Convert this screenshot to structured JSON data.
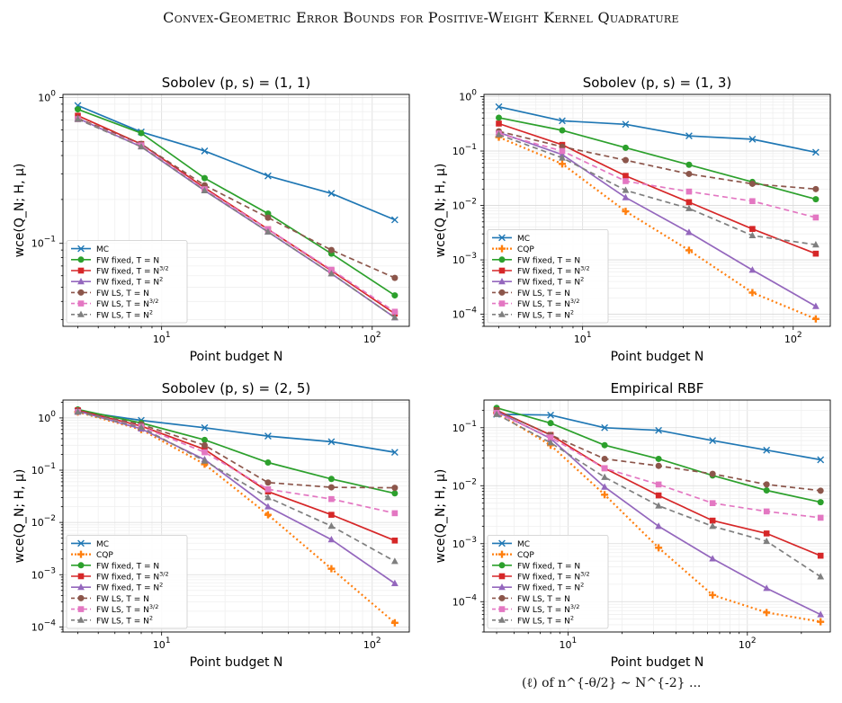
{
  "header": {
    "running_title": "Convex-Geometric Error Bounds for Positive-Weight Kernel Quadrature"
  },
  "caption_fragment": "(ℓ) of n^{-θ/2} ∼ N^{-2} ...",
  "legend": [
    {
      "key": "mc",
      "label": "MC",
      "color": "#1f77b4",
      "marker": "x",
      "dash": ""
    },
    {
      "key": "cqp",
      "label": "CQP",
      "color": "#ff7f0e",
      "marker": "plus",
      "dash": "2,3"
    },
    {
      "key": "fw_n",
      "label": "FW fixed, T = N",
      "color": "#2ca02c",
      "marker": "circle",
      "dash": ""
    },
    {
      "key": "fw_n32",
      "label": "FW fixed, T = N^3/2",
      "color": "#d62728",
      "marker": "square",
      "dash": ""
    },
    {
      "key": "fw_n2",
      "label": "FW fixed, T = N^2",
      "color": "#9467bd",
      "marker": "triangle",
      "dash": ""
    },
    {
      "key": "ls_n",
      "label": "FW LS, T = N",
      "color": "#8c564b",
      "marker": "circle",
      "dash": "6,4"
    },
    {
      "key": "ls_n32",
      "label": "FW LS, T = N^3/2",
      "color": "#e377c2",
      "marker": "square",
      "dash": "6,4"
    },
    {
      "key": "ls_n2",
      "label": "FW LS, T = N^2",
      "color": "#7f7f7f",
      "marker": "triangle",
      "dash": "6,4"
    }
  ],
  "chart_data": [
    {
      "type": "line",
      "title": "Sobolev (p, s) = (1, 1)",
      "xlabel": "Point budget N",
      "ylabel": "wce(Q_N; H, μ)",
      "xscale": "log",
      "yscale": "log",
      "xlim": [
        3.4,
        150
      ],
      "ylim": [
        0.027,
        1.05
      ],
      "yticks": [
        0.1,
        1
      ],
      "ytick_labels": [
        "10^-1",
        "10^0"
      ],
      "xticks": [
        10,
        100
      ],
      "xtick_labels": [
        "10^1",
        "10^2"
      ],
      "grid": true,
      "legend_position": "lower-left",
      "x": [
        4,
        8,
        16,
        32,
        64,
        128
      ],
      "series": [
        {
          "name": "MC",
          "values": [
            0.88,
            0.58,
            0.43,
            0.29,
            0.22,
            0.145
          ]
        },
        {
          "name": "FW fixed, T = N",
          "values": [
            0.83,
            0.57,
            0.28,
            0.16,
            0.085,
            0.044
          ]
        },
        {
          "name": "FW fixed, T = N^3/2",
          "values": [
            0.75,
            0.48,
            0.24,
            0.125,
            0.065,
            0.033
          ]
        },
        {
          "name": "FW fixed, T = N^2",
          "values": [
            0.72,
            0.46,
            0.23,
            0.12,
            0.062,
            0.031
          ]
        },
        {
          "name": "FW LS, T = N",
          "values": [
            0.72,
            0.48,
            0.25,
            0.15,
            0.09,
            0.058
          ]
        },
        {
          "name": "FW LS, T = N^3/2",
          "values": [
            0.71,
            0.47,
            0.235,
            0.125,
            0.066,
            0.034
          ]
        },
        {
          "name": "FW LS, T = N^2",
          "values": [
            0.71,
            0.46,
            0.23,
            0.12,
            0.062,
            0.031
          ]
        }
      ]
    },
    {
      "type": "line",
      "title": "Sobolev (p, s) = (1, 3)",
      "xlabel": "Point budget N",
      "ylabel": "wce(Q_N; H, μ)",
      "xscale": "log",
      "yscale": "log",
      "xlim": [
        3.4,
        150
      ],
      "ylim": [
        6e-05,
        1.1
      ],
      "yticks": [
        0.0001,
        0.001,
        0.01,
        0.1,
        1
      ],
      "ytick_labels": [
        "10^-4",
        "10^-3",
        "10^-2",
        "10^-1",
        "10^0"
      ],
      "xticks": [
        10,
        100
      ],
      "xtick_labels": [
        "10^1",
        "10^2"
      ],
      "grid": true,
      "legend_position": "lower-left",
      "x": [
        4,
        8,
        16,
        32,
        64,
        128
      ],
      "series": [
        {
          "name": "MC",
          "values": [
            0.65,
            0.36,
            0.31,
            0.19,
            0.165,
            0.095
          ]
        },
        {
          "name": "CQP",
          "values": [
            0.18,
            0.058,
            0.0078,
            0.0015,
            0.00025,
            8.2e-05
          ]
        },
        {
          "name": "FW fixed, T = N",
          "values": [
            0.41,
            0.24,
            0.115,
            0.056,
            0.027,
            0.013
          ]
        },
        {
          "name": "FW fixed, T = N^3/2",
          "values": [
            0.32,
            0.13,
            0.035,
            0.0115,
            0.0037,
            0.0013
          ]
        },
        {
          "name": "FW fixed, T = N^2",
          "values": [
            0.22,
            0.086,
            0.014,
            0.0032,
            0.00065,
            0.00014
          ]
        },
        {
          "name": "FW LS, T = N",
          "values": [
            0.23,
            0.12,
            0.068,
            0.038,
            0.025,
            0.02
          ]
        },
        {
          "name": "FW LS, T = N^3/2",
          "values": [
            0.21,
            0.1,
            0.028,
            0.018,
            0.012,
            0.006
          ]
        },
        {
          "name": "FW LS, T = N^2",
          "values": [
            0.2,
            0.075,
            0.019,
            0.0088,
            0.0028,
            0.0019
          ]
        }
      ]
    },
    {
      "type": "line",
      "title": "Sobolev (p, s) = (2, 5)",
      "xlabel": "Point budget N",
      "ylabel": "wce(Q_N; H, μ)",
      "xscale": "log",
      "yscale": "log",
      "xlim": [
        3.4,
        150
      ],
      "ylim": [
        8e-05,
        2.2
      ],
      "yticks": [
        0.0001,
        0.001,
        0.01,
        0.1,
        1
      ],
      "ytick_labels": [
        "10^-4",
        "10^-3",
        "10^-2",
        "10^-1",
        "10^0"
      ],
      "xticks": [
        10,
        100
      ],
      "xtick_labels": [
        "10^1",
        "10^2"
      ],
      "grid": true,
      "legend_position": "lower-left",
      "x": [
        4,
        8,
        16,
        32,
        64,
        128
      ],
      "series": [
        {
          "name": "MC",
          "values": [
            1.35,
            0.9,
            0.65,
            0.45,
            0.35,
            0.22
          ]
        },
        {
          "name": "CQP",
          "values": [
            1.3,
            0.6,
            0.13,
            0.014,
            0.0013,
            0.00012
          ]
        },
        {
          "name": "FW fixed, T = N",
          "values": [
            1.45,
            0.8,
            0.38,
            0.14,
            0.068,
            0.036
          ]
        },
        {
          "name": "FW fixed, T = N^3/2",
          "values": [
            1.4,
            0.7,
            0.25,
            0.039,
            0.014,
            0.0045
          ]
        },
        {
          "name": "FW fixed, T = N^2",
          "values": [
            1.35,
            0.62,
            0.16,
            0.02,
            0.0047,
            0.00068
          ]
        },
        {
          "name": "FW LS, T = N",
          "values": [
            1.35,
            0.75,
            0.3,
            0.058,
            0.047,
            0.046
          ]
        },
        {
          "name": "FW LS, T = N^3/2",
          "values": [
            1.3,
            0.68,
            0.22,
            0.043,
            0.028,
            0.015
          ]
        },
        {
          "name": "FW LS, T = N^2",
          "values": [
            1.3,
            0.66,
            0.15,
            0.03,
            0.0085,
            0.0018
          ]
        }
      ]
    },
    {
      "type": "line",
      "title": "Empirical RBF",
      "xlabel": "Point budget N",
      "ylabel": "wce(Q_N; H, μ)",
      "xscale": "log",
      "yscale": "log",
      "xlim": [
        3.4,
        290
      ],
      "ylim": [
        3e-05,
        0.3
      ],
      "yticks": [
        0.0001,
        0.001,
        0.01,
        0.1
      ],
      "ytick_labels": [
        "10^-4",
        "10^-3",
        "10^-2",
        "10^-1"
      ],
      "xticks": [
        10,
        100
      ],
      "xtick_labels": [
        "10^1",
        "10^2"
      ],
      "grid": true,
      "legend_position": "lower-left",
      "x": [
        4,
        8,
        16,
        32,
        64,
        128,
        256
      ],
      "series": [
        {
          "name": "MC",
          "values": [
            0.17,
            0.165,
            0.1,
            0.09,
            0.06,
            0.041,
            0.028
          ]
        },
        {
          "name": "CQP",
          "values": [
            0.18,
            0.05,
            0.007,
            0.00085,
            0.00013,
            6.5e-05,
            4.5e-05
          ]
        },
        {
          "name": "FW fixed, T = N",
          "values": [
            0.22,
            0.12,
            0.05,
            0.029,
            0.015,
            0.0083,
            0.0052
          ]
        },
        {
          "name": "FW fixed, T = N^3/2",
          "values": [
            0.2,
            0.075,
            0.02,
            0.0068,
            0.0025,
            0.0015,
            0.00062
          ]
        },
        {
          "name": "FW fixed, T = N^2",
          "values": [
            0.19,
            0.065,
            0.0095,
            0.002,
            0.00055,
            0.00017,
            6e-05
          ]
        },
        {
          "name": "FW LS, T = N",
          "values": [
            0.2,
            0.075,
            0.029,
            0.022,
            0.016,
            0.0105,
            0.0082
          ]
        },
        {
          "name": "FW LS, T = N^3/2",
          "values": [
            0.18,
            0.068,
            0.02,
            0.0105,
            0.005,
            0.0036,
            0.0028
          ]
        },
        {
          "name": "FW LS, T = N^2",
          "values": [
            0.17,
            0.055,
            0.014,
            0.0045,
            0.002,
            0.0011,
            0.00027
          ]
        }
      ]
    }
  ]
}
